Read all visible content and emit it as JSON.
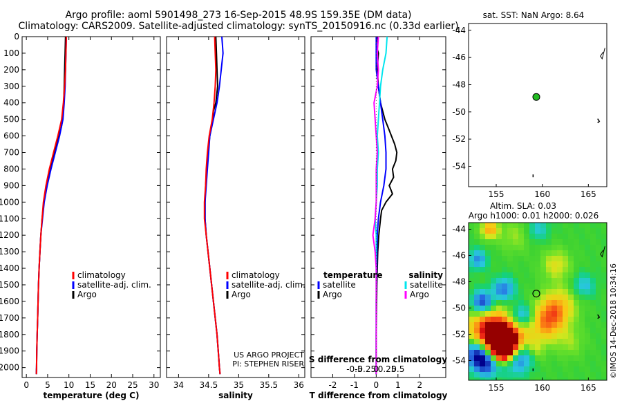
{
  "title": {
    "line1": "Argo profile: aoml 5901498_273 16-Sep-2015 48.9S 159.35E (DM data)",
    "line2": "Climatology: CARS2009. Satellite-adjusted climatology: synTS_20150916.nc (0.33d earlier)"
  },
  "chart_data": [
    {
      "type": "line",
      "name": "temperature-profile",
      "xlabel": "temperature (deg C)",
      "xlim": [
        -1,
        31.5
      ],
      "xticks": [
        0,
        5,
        10,
        15,
        20,
        25,
        30
      ],
      "xtick_labels": [
        "0",
        "5",
        "10",
        "15",
        "20",
        "25",
        "30"
      ],
      "ylim": [
        0,
        2060
      ],
      "yticks": [
        0,
        100,
        200,
        300,
        400,
        500,
        600,
        700,
        800,
        900,
        1000,
        1100,
        1200,
        1300,
        1400,
        1500,
        1600,
        1700,
        1800,
        1900,
        2000
      ],
      "ytick_labels": [
        "0",
        "100",
        "200",
        "300",
        "400",
        "500",
        "600",
        "700",
        "800",
        "900",
        "1000",
        "1100",
        "1200",
        "1300",
        "1400",
        "1500",
        "1600",
        "1700",
        "1800",
        "1900",
        "2000"
      ],
      "legend": [
        "climatology",
        "satellite-adj. clim.",
        "Argo"
      ],
      "series": [
        {
          "name": "Argo",
          "color": "#000000",
          "depth": [
            0,
            100,
            200,
            300,
            400,
            500,
            550,
            600,
            700,
            800,
            900,
            1000,
            1100,
            1200,
            1300,
            1400,
            1500,
            1600,
            1700,
            1800,
            1900,
            2000,
            2040
          ],
          "values": [
            9.2,
            9.1,
            9.0,
            8.9,
            8.8,
            8.5,
            8.2,
            7.6,
            6.6,
            5.6,
            4.8,
            4.1,
            3.7,
            3.4,
            3.2,
            3.0,
            2.85,
            2.75,
            2.65,
            2.55,
            2.45,
            2.4,
            2.35
          ]
        },
        {
          "name": "satellite-adj. clim.",
          "color": "#0000ff",
          "depth": [
            0,
            100,
            200,
            300,
            400,
            500,
            600,
            700,
            800,
            900,
            1000,
            1100,
            1200,
            1300,
            1400,
            1500,
            1600,
            1700,
            1800,
            1900,
            2000,
            2040
          ],
          "values": [
            9.4,
            9.3,
            9.2,
            9.1,
            8.9,
            8.6,
            7.8,
            6.8,
            5.8,
            4.9,
            4.2,
            3.8,
            3.4,
            3.2,
            3.0,
            2.85,
            2.75,
            2.65,
            2.55,
            2.45,
            2.4,
            2.35
          ]
        },
        {
          "name": "climatology",
          "color": "#ff0000",
          "depth": [
            0,
            100,
            200,
            300,
            400,
            500,
            600,
            700,
            800,
            900,
            1000,
            1100,
            1200,
            1300,
            1400,
            1500,
            1600,
            1700,
            1800,
            1900,
            2000,
            2040
          ],
          "values": [
            9.4,
            9.3,
            9.2,
            9.0,
            8.7,
            8.3,
            7.4,
            6.4,
            5.4,
            4.6,
            4.0,
            3.7,
            3.4,
            3.2,
            3.0,
            2.85,
            2.75,
            2.65,
            2.55,
            2.45,
            2.4,
            2.35
          ]
        }
      ]
    },
    {
      "type": "line",
      "name": "salinity-profile",
      "xlabel": "salinity",
      "xlim": [
        33.8,
        36.1
      ],
      "xticks": [
        34,
        34.5,
        35,
        35.5,
        36
      ],
      "xtick_labels": [
        "34",
        "34.5",
        "35",
        "35.5",
        "36"
      ],
      "ylim": [
        0,
        2060
      ],
      "legend": [
        "climatology",
        "satellite-adj. clim.",
        "Argo"
      ],
      "annotation": [
        "US ARGO PROJECT",
        "PI: STEPHEN RISER"
      ],
      "series": [
        {
          "name": "Argo",
          "color": "#000000",
          "depth": [
            0,
            100,
            200,
            300,
            400,
            450,
            500,
            600,
            700,
            800,
            900,
            1000,
            1100,
            1200,
            1300,
            1400,
            1500,
            1600,
            1700,
            1800,
            1900,
            2000,
            2040
          ],
          "values": [
            34.62,
            34.63,
            34.64,
            34.65,
            34.62,
            34.58,
            34.57,
            34.52,
            34.49,
            34.47,
            34.45,
            34.44,
            34.44,
            34.46,
            34.49,
            34.52,
            34.55,
            34.58,
            34.61,
            34.64,
            34.66,
            34.68,
            34.69
          ]
        },
        {
          "name": "satellite-adj. clim.",
          "color": "#0000ff",
          "depth": [
            0,
            100,
            200,
            300,
            400,
            500,
            600,
            700,
            800,
            900,
            1000,
            1100,
            1200,
            1300,
            1400,
            1500,
            1600,
            1700,
            1800,
            1900,
            2000,
            2040
          ],
          "values": [
            34.72,
            34.74,
            34.71,
            34.68,
            34.64,
            34.58,
            34.52,
            34.5,
            34.48,
            34.46,
            34.44,
            34.44,
            34.46,
            34.49,
            34.52,
            34.55,
            34.58,
            34.61,
            34.64,
            34.66,
            34.68,
            34.69
          ]
        },
        {
          "name": "climatology",
          "color": "#ff0000",
          "depth": [
            0,
            100,
            200,
            300,
            400,
            500,
            600,
            700,
            800,
            900,
            1000,
            1100,
            1200,
            1300,
            1400,
            1500,
            1600,
            1700,
            1800,
            1900,
            2000,
            2040
          ],
          "values": [
            34.6,
            34.61,
            34.62,
            34.61,
            34.59,
            34.56,
            34.51,
            34.48,
            34.46,
            34.45,
            34.43,
            34.43,
            34.46,
            34.49,
            34.52,
            34.55,
            34.58,
            34.61,
            34.64,
            34.66,
            34.68,
            34.69
          ]
        }
      ]
    },
    {
      "type": "line",
      "name": "difference-profile",
      "xlabel": "T difference from climatology",
      "xlabel_top": "S difference from climatology",
      "xlim": [
        -3,
        3.2
      ],
      "xticks": [
        -2,
        -1,
        0,
        1,
        2
      ],
      "xtick_labels": [
        "-2",
        "-1",
        "0",
        "1",
        "2"
      ],
      "top_ticks": [
        -1,
        -0.5,
        0,
        0.5,
        1
      ],
      "top_tick_labels": [
        "-0.5",
        "-0.25",
        "0",
        "0.25",
        "0.5"
      ],
      "ylim": [
        0,
        2060
      ],
      "legend_temperature_title": "temperature",
      "legend_salinity_title": "salinity",
      "legend_temperature": [
        "satellite",
        "Argo"
      ],
      "legend_salinity": [
        "satellite",
        "Argo"
      ],
      "series": [
        {
          "name": "T Argo",
          "color": "#000000",
          "depth": [
            0,
            50,
            100,
            200,
            300,
            400,
            500,
            550,
            600,
            650,
            700,
            750,
            800,
            850,
            900,
            950,
            1000,
            1050,
            1100,
            1200,
            1300,
            1400,
            1500,
            1600,
            1700,
            1800,
            1900,
            2000,
            2040
          ],
          "values": [
            0.05,
            0.0,
            0.1,
            0.05,
            0.1,
            0.2,
            0.4,
            0.55,
            0.7,
            0.85,
            0.95,
            0.9,
            0.75,
            0.8,
            0.6,
            0.75,
            0.45,
            0.25,
            0.2,
            0.12,
            0.07,
            0.05,
            0.03,
            0.02,
            0.01,
            0.0,
            0.0,
            0.0,
            0.0
          ]
        },
        {
          "name": "T satellite",
          "color": "#0000ff",
          "depth": [
            0,
            100,
            200,
            300,
            400,
            500,
            600,
            700,
            800,
            900,
            1000,
            1100,
            1200,
            1300,
            1400,
            1500,
            1600,
            1700,
            1800,
            1900,
            2000,
            2040
          ],
          "values": [
            0.0,
            0.0,
            0.0,
            0.1,
            0.2,
            0.3,
            0.4,
            0.45,
            0.45,
            0.35,
            0.2,
            0.1,
            0.05,
            0.03,
            0.02,
            0.01,
            0.0,
            0.0,
            0.0,
            0.0,
            0.0,
            0.0
          ]
        },
        {
          "name": "S satellite",
          "color": "#00e5ee",
          "depth": [
            0,
            100,
            200,
            300,
            400,
            500,
            600,
            700,
            800,
            900,
            1000,
            1100,
            1200,
            1300,
            1400,
            1500,
            1600,
            1700,
            1800,
            1900,
            2000,
            2040
          ],
          "values": [
            0.5,
            0.45,
            0.3,
            0.2,
            0.15,
            0.1,
            0.05,
            0.1,
            0.05,
            0.05,
            0.0,
            -0.05,
            0.0,
            0.0,
            0.0,
            0.0,
            0.0,
            0.0,
            0.0,
            0.0,
            0.0,
            0.0
          ]
        },
        {
          "name": "S Argo",
          "color": "#ff00ff",
          "depth": [
            0,
            100,
            200,
            300,
            400,
            500,
            600,
            700,
            800,
            900,
            1000,
            1100,
            1200,
            1300,
            1400,
            1500,
            1600,
            1700,
            1800,
            1900,
            2000,
            2040
          ],
          "values": [
            0.1,
            0.05,
            0.1,
            0.05,
            -0.1,
            -0.05,
            0.0,
            0.05,
            0.0,
            0.0,
            0.0,
            -0.05,
            -0.15,
            -0.05,
            0.0,
            0.0,
            0.0,
            0.0,
            0.0,
            0.0,
            0.0,
            0.0
          ]
        }
      ]
    },
    {
      "type": "scatter",
      "name": "sst-map",
      "title": "sat. SST: NaN Argo: 8.64",
      "xlim": [
        152,
        167
      ],
      "ylim": [
        -55.5,
        -43.5
      ],
      "xticks": [
        155,
        160,
        165
      ],
      "xtick_labels": [
        "155",
        "160",
        "165"
      ],
      "yticks": [
        -44,
        -46,
        -48,
        -50,
        -52,
        -54
      ],
      "ytick_labels": [
        "-44",
        "-46",
        "-48",
        "-50",
        "-52",
        "-54"
      ],
      "points": [
        {
          "lon": 159.35,
          "lat": -48.9,
          "color": "#22bb22"
        }
      ]
    },
    {
      "type": "heatmap",
      "name": "sla-map",
      "title_line1": "Altim. SLA: 0.03",
      "title_line2": "Argo h1000: 0.01 h2000: 0.026",
      "xlim": [
        152,
        167
      ],
      "ylim": [
        -55.5,
        -43.5
      ],
      "xticks": [
        155,
        160,
        165
      ],
      "xtick_labels": [
        "155",
        "160",
        "165"
      ],
      "yticks": [
        -44,
        -46,
        -48,
        -50,
        -52,
        -54
      ],
      "ytick_labels": [
        "-44",
        "-46",
        "-48",
        "-50",
        "-52",
        "-54"
      ],
      "points": [
        {
          "lon": 159.35,
          "lat": -48.9
        }
      ],
      "blobs": [
        {
          "lon": 155.2,
          "lat": -52.7,
          "v": 1.0,
          "r": 0.9
        },
        {
          "lon": 155.8,
          "lat": -53.2,
          "v": 1.0,
          "r": 0.6
        },
        {
          "lon": 154.1,
          "lat": -51.5,
          "v": 0.8,
          "r": 1.2
        },
        {
          "lon": 156.6,
          "lat": -52.3,
          "v": 0.7,
          "r": 1.0
        },
        {
          "lon": 153.5,
          "lat": -49.6,
          "v": -0.9,
          "r": 0.6
        },
        {
          "lon": 153.0,
          "lat": -53.5,
          "v": -0.9,
          "r": 0.7
        },
        {
          "lon": 154.0,
          "lat": -54.2,
          "v": -0.8,
          "r": 0.7
        },
        {
          "lon": 157.0,
          "lat": -54.0,
          "v": -0.5,
          "r": 0.8
        },
        {
          "lon": 158.2,
          "lat": -53.6,
          "v": -0.4,
          "r": 0.6
        },
        {
          "lon": 155.8,
          "lat": -48.6,
          "v": -0.6,
          "r": 0.6
        },
        {
          "lon": 154.3,
          "lat": -44.0,
          "v": 0.6,
          "r": 0.5
        },
        {
          "lon": 153.0,
          "lat": -46.3,
          "v": -0.5,
          "r": 0.5
        },
        {
          "lon": 157.8,
          "lat": -50.6,
          "v": -0.5,
          "r": 0.6
        },
        {
          "lon": 161.0,
          "lat": -50.5,
          "v": 0.5,
          "r": 1.0
        },
        {
          "lon": 160.2,
          "lat": -51.5,
          "v": 0.35,
          "r": 0.9
        },
        {
          "lon": 162.0,
          "lat": -49.7,
          "v": 0.3,
          "r": 1.0
        },
        {
          "lon": 161.5,
          "lat": -46.7,
          "v": 0.35,
          "r": 0.8
        },
        {
          "lon": 164.5,
          "lat": -48.3,
          "v": -0.35,
          "r": 0.6
        },
        {
          "lon": 163.0,
          "lat": -52.6,
          "v": 0.2,
          "r": 0.8
        },
        {
          "lon": 157.0,
          "lat": -44.5,
          "v": 0.2,
          "r": 0.9
        },
        {
          "lon": 159.5,
          "lat": -44.0,
          "v": -0.3,
          "r": 0.6
        },
        {
          "lon": 159.0,
          "lat": -53.3,
          "v": 0.3,
          "r": 0.6
        }
      ]
    }
  ],
  "credit": "©IMOS 14-Dec-2018 10:34:16"
}
